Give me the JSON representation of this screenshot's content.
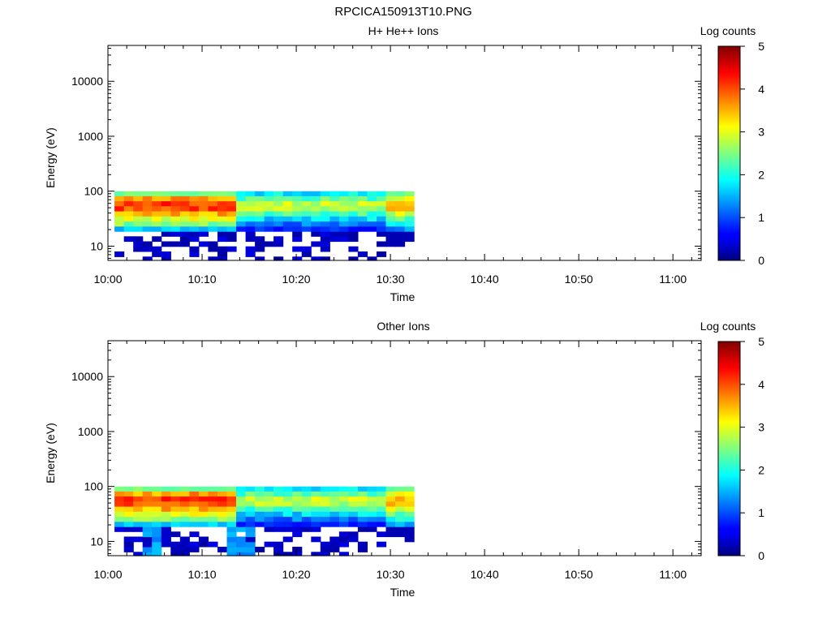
{
  "figure_title": "RPCICA150913T10.PNG",
  "chart_data": [
    {
      "type": "heatmap",
      "title": "H+ He++ Ions",
      "xlabel": "Time",
      "ylabel": "Energy (eV)",
      "xticks": [
        "10:00",
        "10:10",
        "10:20",
        "10:30",
        "10:40",
        "10:50",
        "11:00"
      ],
      "xlim_minutes": [
        0,
        63
      ],
      "yticks": [
        10,
        100,
        1000,
        10000
      ],
      "ylim": [
        5.5,
        45000
      ],
      "yscale": "log",
      "colorbar": {
        "label": "Log counts",
        "ticks": [
          0,
          1,
          2,
          3,
          4,
          5
        ],
        "range": [
          0,
          5
        ]
      },
      "time_range_minutes": [
        0.7,
        32.5
      ],
      "time_bins": 32,
      "energy_bins_ev": [
        5.8,
        7.2,
        8.9,
        11.0,
        13.6,
        16.8,
        20.8,
        25.7,
        31.8,
        39.3,
        48.6,
        60.1,
        74.3,
        91.8
      ],
      "energy_range_ev": [
        5.5,
        100
      ],
      "summary": "Peak 4–5 log counts at 40–80 eV early in the interval, decreasing to about 3 after 10:13, with 3.5–4 at 10:30–10:32; sparse low counts below 20 eV."
    },
    {
      "type": "heatmap",
      "title": "Other Ions",
      "xlabel": "Time",
      "ylabel": "Energy (eV)",
      "xticks": [
        "10:00",
        "10:10",
        "10:20",
        "10:30",
        "10:40",
        "10:50",
        "11:00"
      ],
      "xlim_minutes": [
        0,
        63
      ],
      "yticks": [
        10,
        100,
        1000,
        10000
      ],
      "ylim": [
        5.5,
        45000
      ],
      "yscale": "log",
      "colorbar": {
        "label": "Log counts",
        "ticks": [
          0,
          1,
          2,
          3,
          4,
          5
        ],
        "range": [
          0,
          5
        ]
      },
      "time_range_minutes": [
        0.7,
        32.5
      ],
      "time_bins": 32,
      "energy_bins_ev": [
        5.8,
        7.2,
        8.9,
        11.0,
        13.6,
        16.8,
        20.8,
        25.7,
        31.8,
        39.3,
        48.6,
        60.1,
        74.3,
        91.8
      ],
      "energy_range_ev": [
        5.5,
        100
      ],
      "summary": "Peak 4–5 log counts at 40–90 eV before 10:13, around 3 afterwards, with 3.5–4 at 10:30–10:32; sparse counts below 20 eV with a cyan patch near 10:04 and 10:13."
    }
  ]
}
